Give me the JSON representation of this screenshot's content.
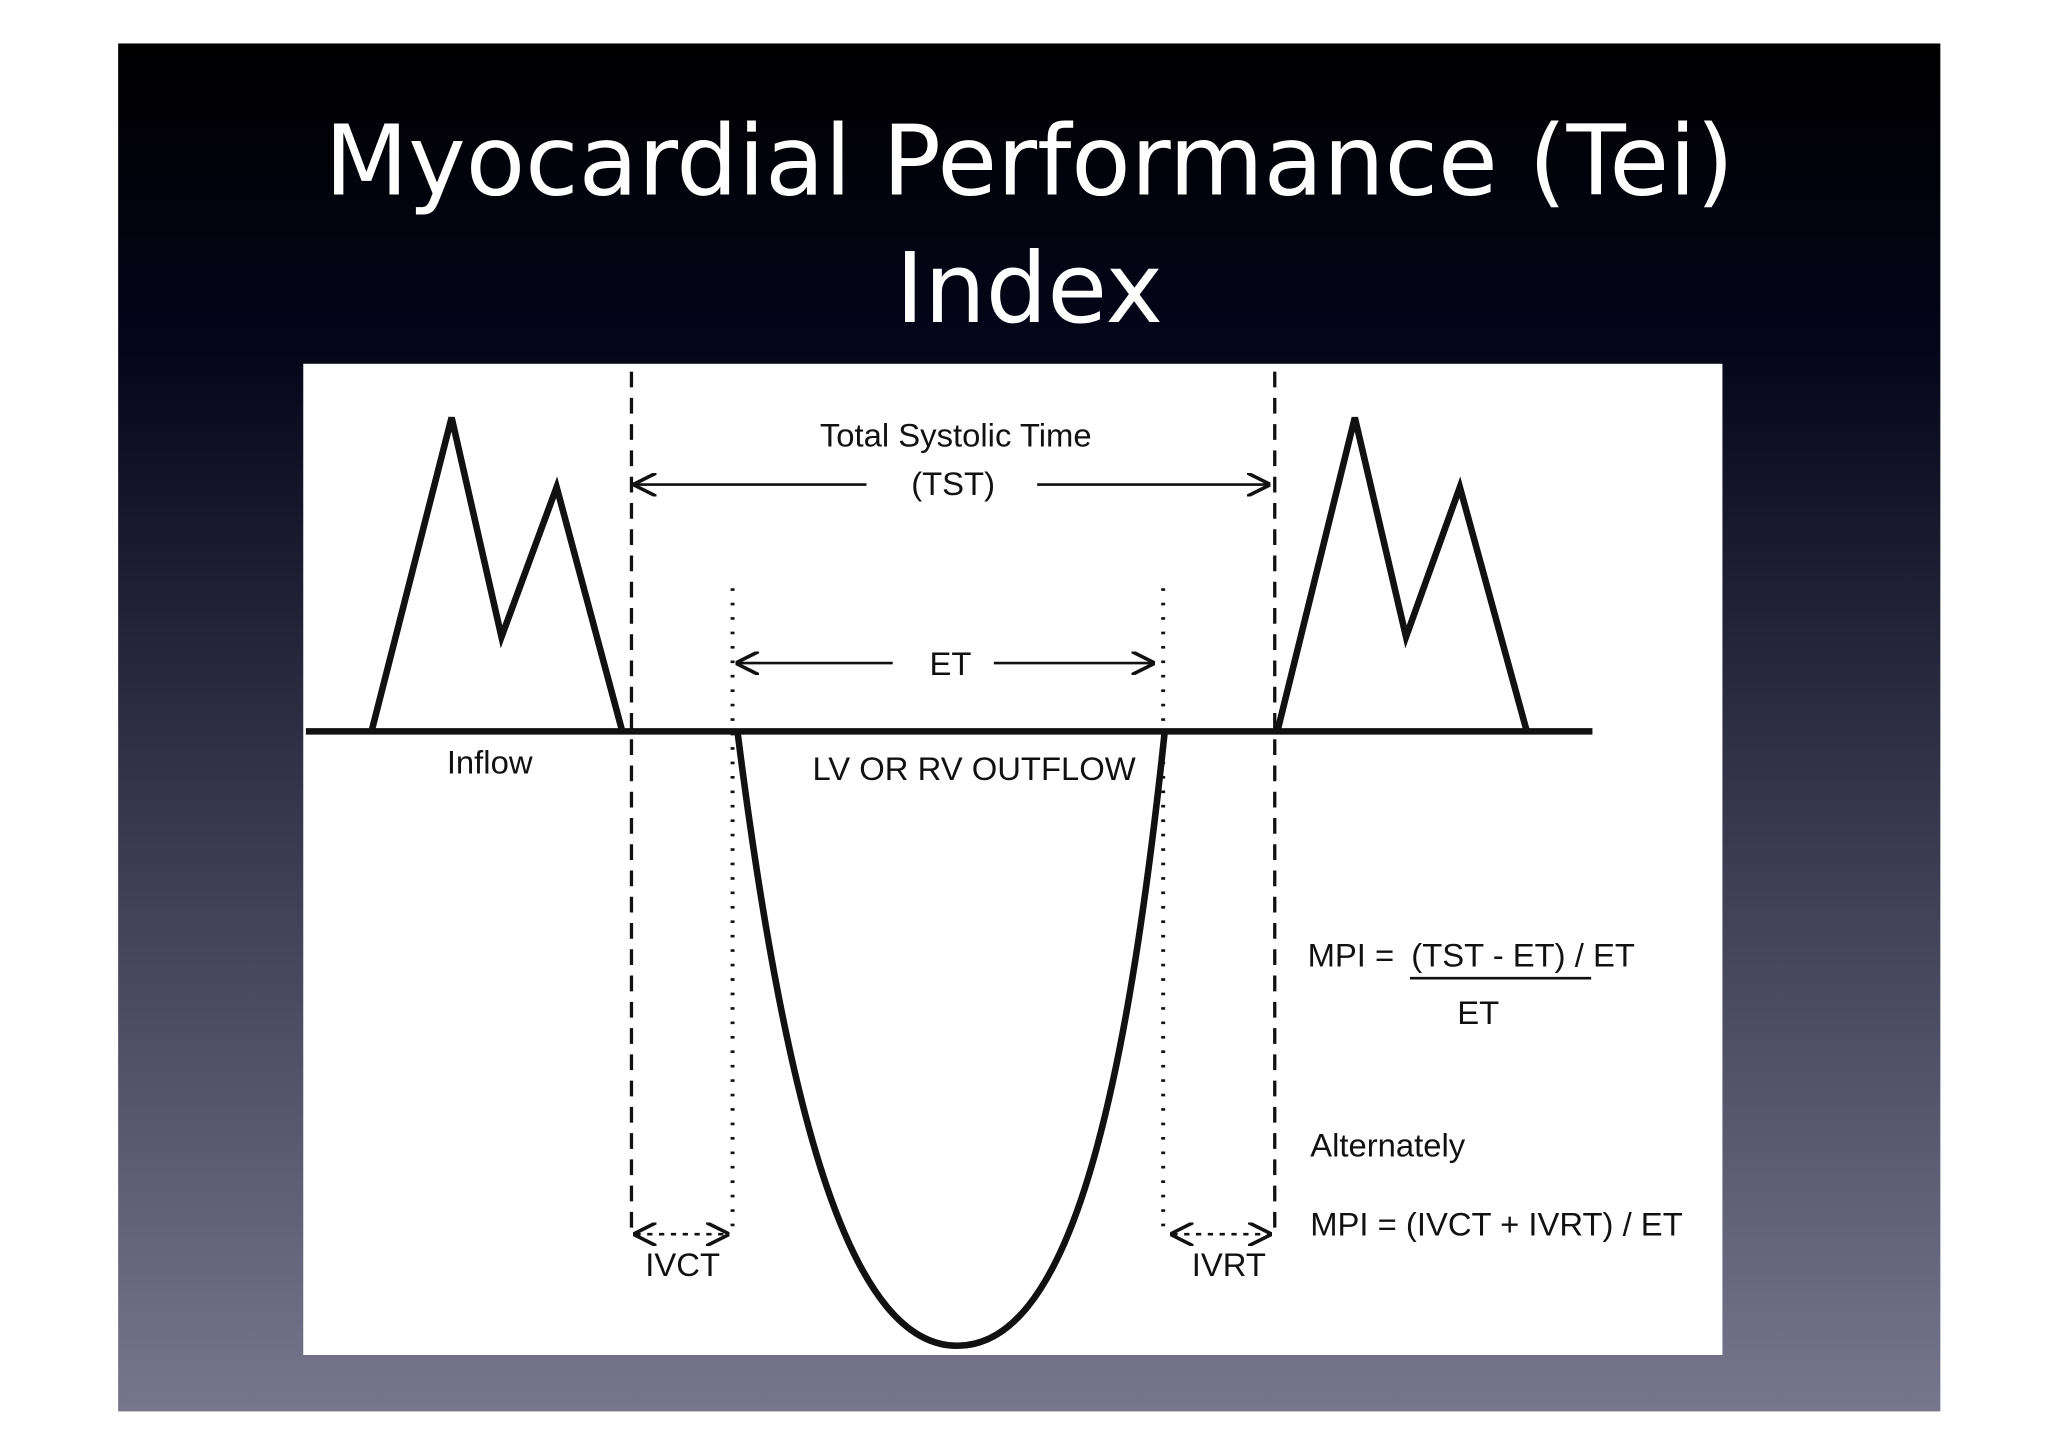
{
  "title": {
    "line1": "Myocardial Performance (Tei)",
    "line2": "Index"
  },
  "diagram": {
    "tst_label": "Total Systolic Time",
    "tst_abbr": "(TST)",
    "et_label": "ET",
    "inflow_label": "Inflow",
    "outflow_label": "LV OR RV OUTFLOW",
    "formula1_prefix": "MPI =",
    "formula1_numerator": "(TST - ET) / ET",
    "formula1_denominator": "ET",
    "alternately": "Alternately",
    "formula2": "MPI = (IVCT + IVRT) / ET",
    "ivct_label": "IVCT",
    "ivrt_label": "IVRT"
  }
}
